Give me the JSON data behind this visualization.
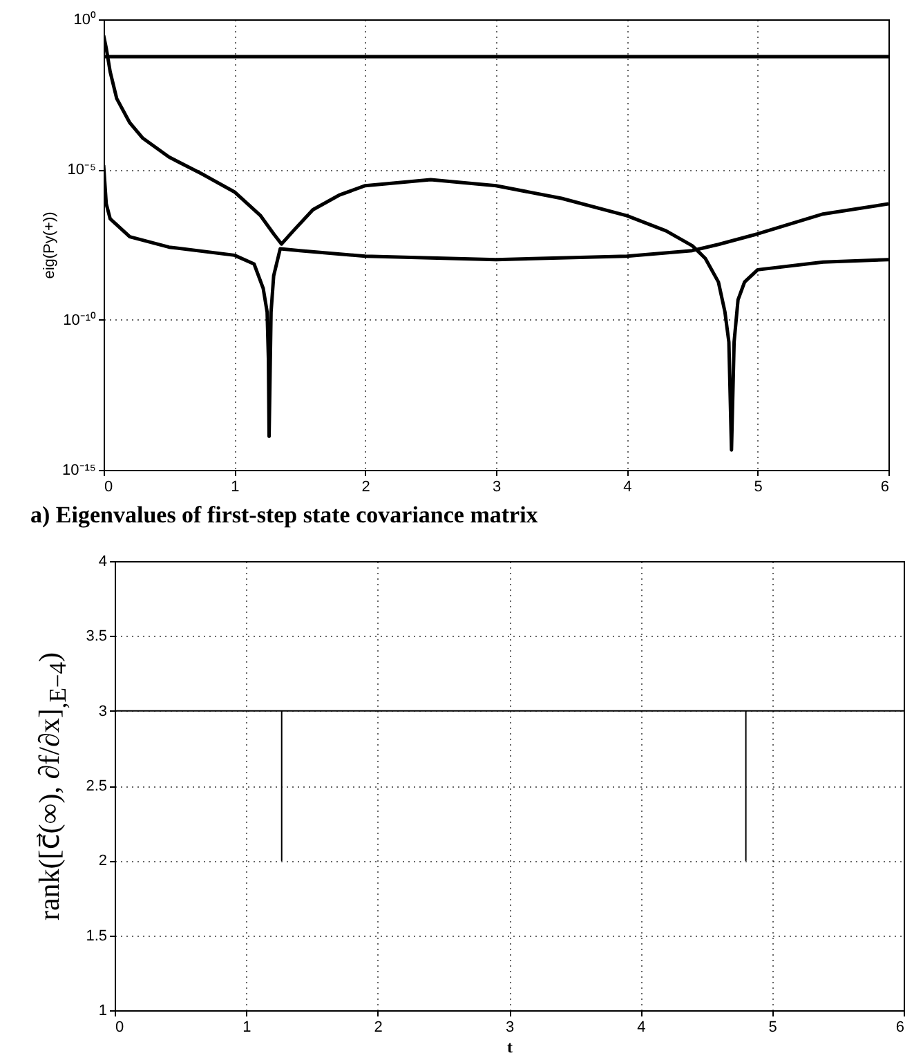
{
  "chart_data": [
    {
      "type": "line",
      "title": "a) Eigenvalues of first-step state covariance matrix",
      "ylabel": "eig(Py(+))",
      "log": true,
      "grid": true,
      "xlim": [
        0,
        6
      ],
      "ylim": [
        1e-15,
        1
      ],
      "xticks": [
        0,
        1,
        2,
        3,
        4,
        5,
        6
      ],
      "yticks": [
        {
          "value": 1e-15,
          "label": "10⁻¹⁵"
        },
        {
          "value": 1e-10,
          "label": "10⁻¹⁰"
        },
        {
          "value": 1e-05,
          "label": "10⁻⁵"
        },
        {
          "value": 1,
          "label": "10⁰"
        }
      ],
      "series": [
        {
          "color": "#000000",
          "x": [
            0,
            6
          ],
          "values": [
            0.057,
            0.057
          ]
        },
        {
          "color": "#000000",
          "x": [
            0,
            0.02,
            0.05,
            0.1,
            0.2,
            0.3,
            0.5,
            0.75,
            1.0,
            1.2,
            1.3,
            1.36,
            1.45,
            1.6,
            1.8,
            2.0,
            2.5,
            3.0,
            3.5,
            4.0,
            4.3,
            4.5,
            4.6,
            4.7,
            4.75,
            4.78,
            4.8,
            4.82,
            4.85,
            4.9,
            5.0,
            5.5,
            6.0
          ],
          "values": [
            0.29,
            0.11,
            0.018,
            0.0023,
            0.00036,
            0.00011,
            2.6e-05,
            7.2e-06,
            1.8e-06,
            2.9e-07,
            7.2e-08,
            3.3e-08,
            9.1e-08,
            4.6e-07,
            1.4e-06,
            2.9e-06,
            4.6e-06,
            2.9e-06,
            1.1e-06,
            2.9e-07,
            9.1e-08,
            2.9e-08,
            1.1e-08,
            1.8e-09,
            1.8e-10,
            1.8e-11,
            4.6e-15,
            1.8e-11,
            4.6e-10,
            1.8e-09,
            4.6e-09,
            8.3e-09,
            1e-08
          ]
        },
        {
          "color": "#000000",
          "x": [
            0,
            0.02,
            0.05,
            0.2,
            0.5,
            1.0,
            1.15,
            1.22,
            1.25,
            1.26,
            1.265,
            1.28,
            1.3,
            1.35,
            1.5,
            2.0,
            3.0,
            4.0,
            4.5,
            4.7,
            5.0,
            5.5,
            6.0
          ],
          "values": [
            1.4e-05,
            7.2e-07,
            2.3e-07,
            5.8e-08,
            2.6e-08,
            1.4e-08,
            7.2e-09,
            1.1e-09,
            1.8e-10,
            4.6e-12,
            1.3e-14,
            1.8e-10,
            2.9e-09,
            2.3e-08,
            2e-08,
            1.3e-08,
            1e-08,
            1.3e-08,
            2e-08,
            3.2e-08,
            7.2e-08,
            3.3e-07,
            7.2e-07
          ]
        }
      ]
    },
    {
      "type": "line",
      "xlabel": "t",
      "ylabel": "rank([c⃗(∞), ∂f/∂x]$_{,E−4}$)",
      "grid": true,
      "xlim": [
        0,
        6
      ],
      "ylim": [
        1,
        4
      ],
      "xticks": [
        0,
        1,
        2,
        3,
        4,
        5,
        6
      ],
      "yticks": [
        1,
        1.5,
        2,
        2.5,
        3,
        3.5,
        4
      ],
      "series": [
        {
          "color": "#000000",
          "x": [
            0,
            1.27,
            1.27,
            1.27,
            4.8,
            4.8,
            4.8,
            6
          ],
          "values": [
            3,
            3,
            2,
            3,
            3,
            2,
            3,
            3
          ]
        }
      ]
    }
  ]
}
